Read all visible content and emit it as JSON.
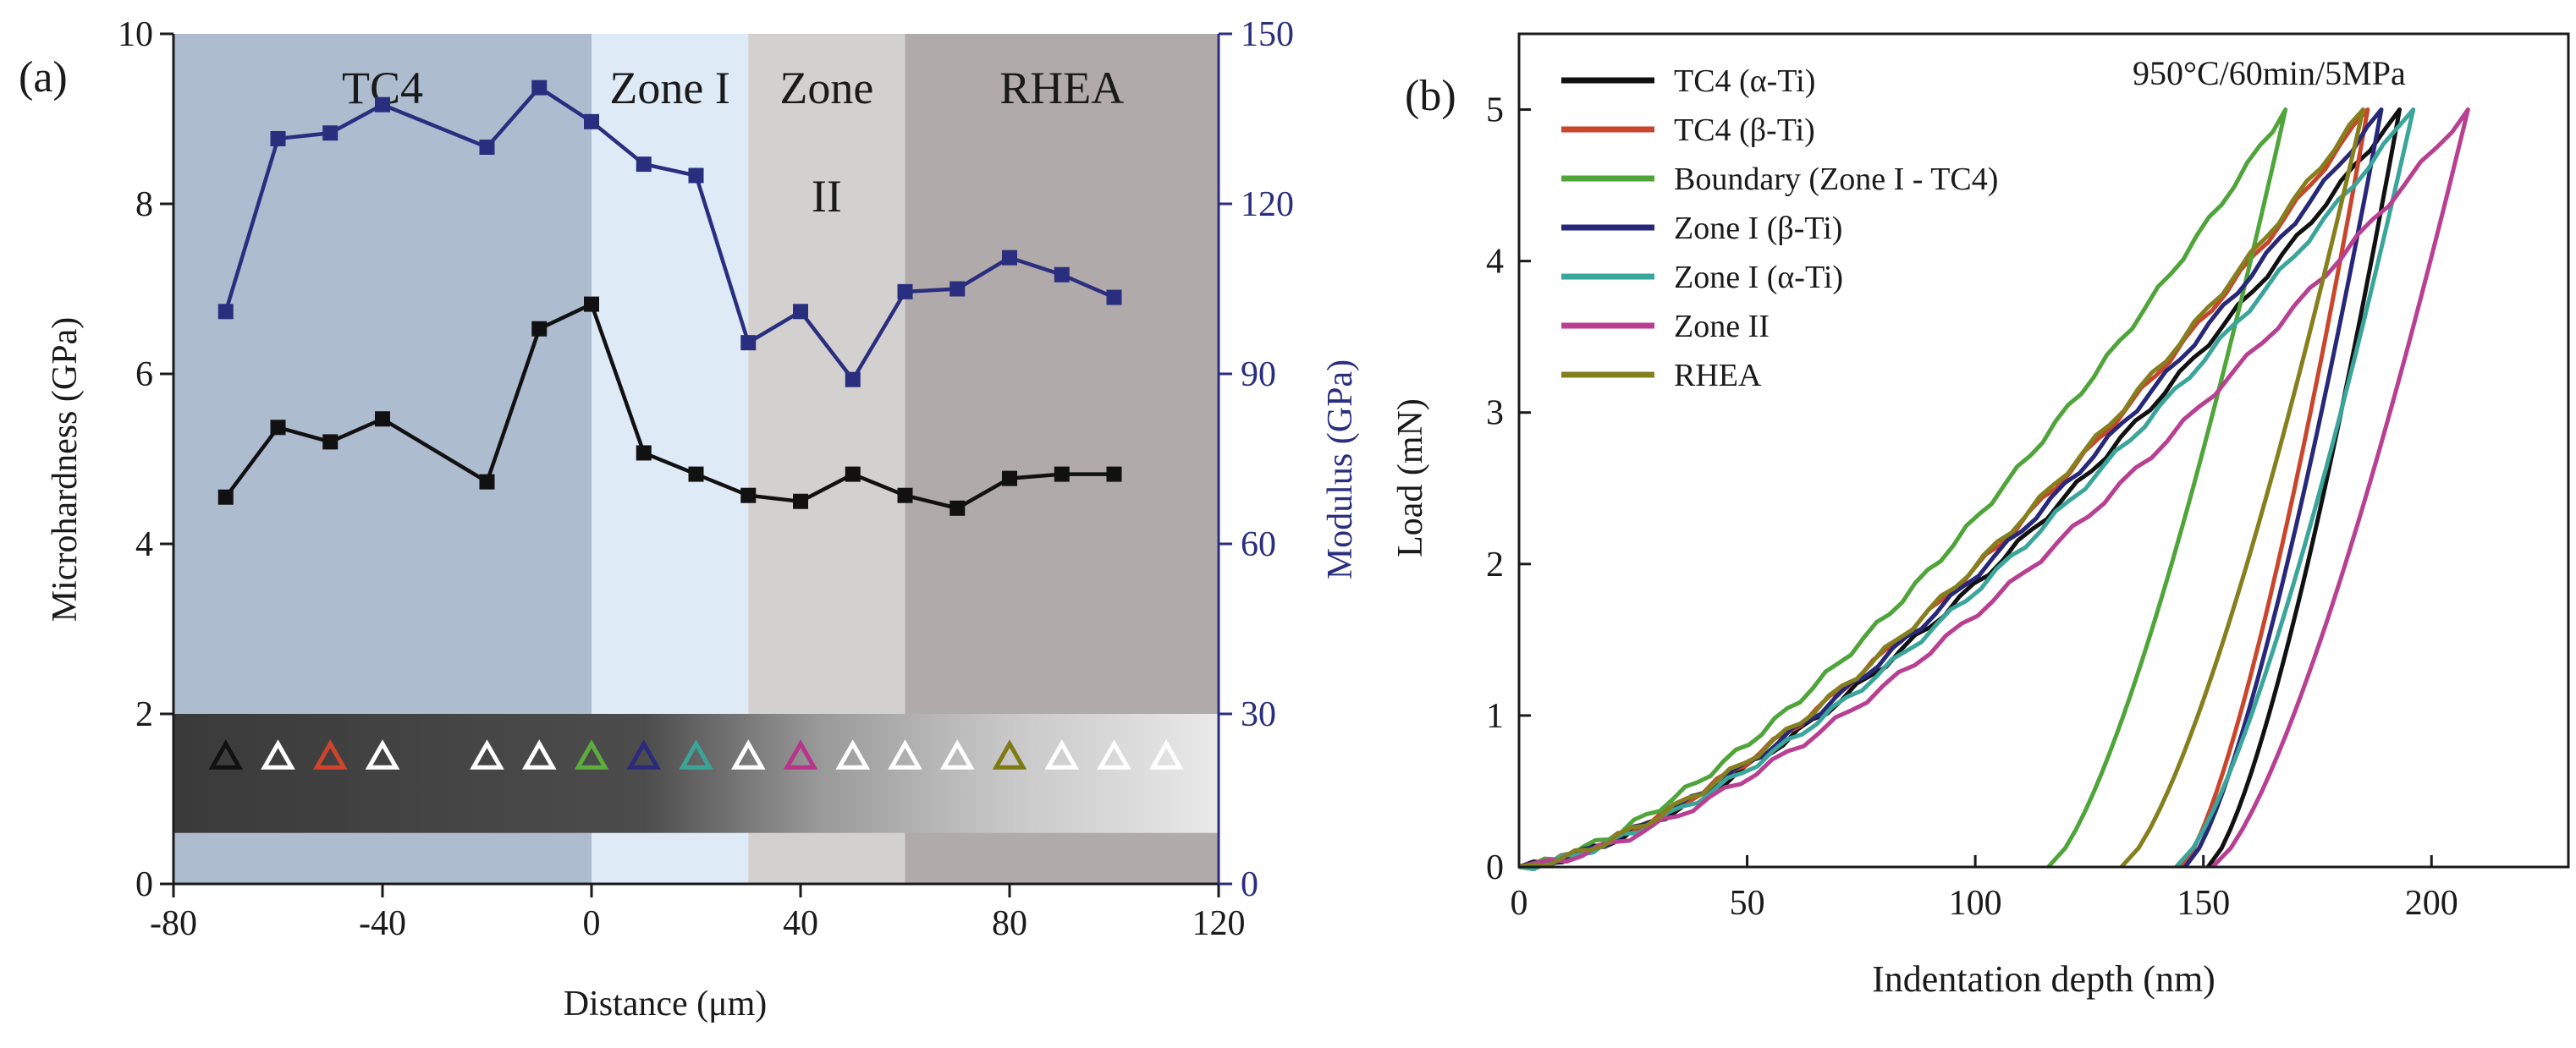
{
  "panel_labels": {
    "a": "(a)",
    "b": "(b)"
  },
  "chart_data": [
    {
      "type": "line",
      "panel": "(a)",
      "xlabel": "Distance (μm)",
      "ylabel": "Microhardness (GPa)",
      "y2label": "Modulus (GPa)",
      "xlim": [
        -80,
        120
      ],
      "xticks": [
        -80,
        -40,
        0,
        40,
        80,
        120
      ],
      "xtick_labels": [
        "-80",
        "-40",
        "0",
        "40",
        "80",
        "120"
      ],
      "ylim": [
        0,
        10
      ],
      "yticks": [
        0,
        2,
        4,
        6,
        8,
        10
      ],
      "ytick_labels": [
        "0",
        "2",
        "4",
        "6",
        "8",
        "10"
      ],
      "y2lim": [
        0,
        150
      ],
      "y2ticks": [
        0,
        30,
        60,
        90,
        120,
        150
      ],
      "y2tick_labels": [
        "0",
        "30",
        "60",
        "90",
        "120",
        "150"
      ],
      "zones": [
        {
          "name": "TC4",
          "label": "TC4",
          "from": -80,
          "to": 0,
          "color": "#aebcd0"
        },
        {
          "name": "Zone I",
          "label": "Zone I",
          "from": 0,
          "to": 30,
          "color": "#deeaf6"
        },
        {
          "name": "Zone II",
          "label": "Zone",
          "label2": "II",
          "from": 30,
          "to": 60,
          "color": "#d3d1cf"
        },
        {
          "name": "RHEA",
          "label": "RHEA",
          "from": 60,
          "to": 120,
          "color": "#b1aaaa"
        }
      ],
      "micrograph_strip": {
        "y_from": 0.6,
        "y_to": 2.0
      },
      "indent_markers": [
        {
          "x": -70,
          "color": "#111111"
        },
        {
          "x": -60,
          "color": "#ffffff"
        },
        {
          "x": -50,
          "color": "#d0442a"
        },
        {
          "x": -40,
          "color": "#ffffff"
        },
        {
          "x": -20,
          "color": "#ffffff"
        },
        {
          "x": -10,
          "color": "#ffffff"
        },
        {
          "x": 0,
          "color": "#5cad3c"
        },
        {
          "x": 10,
          "color": "#2b2a7c"
        },
        {
          "x": 20,
          "color": "#3aa597"
        },
        {
          "x": 30,
          "color": "#ffffff"
        },
        {
          "x": 40,
          "color": "#b8338a"
        },
        {
          "x": 50,
          "color": "#ffffff"
        },
        {
          "x": 60,
          "color": "#ffffff"
        },
        {
          "x": 70,
          "color": "#ffffff"
        },
        {
          "x": 80,
          "color": "#807a14"
        },
        {
          "x": 90,
          "color": "#ffffff"
        },
        {
          "x": 100,
          "color": "#ffffff"
        },
        {
          "x": 110,
          "color": "#ffffff"
        }
      ],
      "series": [
        {
          "name": "Microhardness",
          "axis": "left",
          "color": "#111111",
          "x": [
            -70,
            -60,
            -50,
            -40,
            -20,
            -10,
            0,
            10,
            20,
            30,
            40,
            50,
            60,
            70,
            80,
            90,
            100
          ],
          "y": [
            4.55,
            5.37,
            5.2,
            5.47,
            4.73,
            6.53,
            6.82,
            5.07,
            4.82,
            4.57,
            4.5,
            4.82,
            4.57,
            4.42,
            4.77,
            4.82,
            4.82
          ]
        },
        {
          "name": "Modulus",
          "axis": "right",
          "color": "#2a2e7e",
          "x": [
            -70,
            -60,
            -50,
            -40,
            -20,
            -10,
            0,
            10,
            20,
            30,
            40,
            50,
            60,
            70,
            80,
            90,
            100
          ],
          "y": [
            101,
            131.5,
            132.5,
            137.5,
            130,
            140.5,
            134.5,
            127,
            125,
            95.5,
            101,
            89,
            104.5,
            105,
            110.5,
            107.5,
            103.5
          ]
        }
      ]
    },
    {
      "type": "line",
      "panel": "(b)",
      "annotation": "950°C/60min/5MPa",
      "xlabel": "Indentation depth (nm)",
      "ylabel": "Load (mN)",
      "xlim": [
        0,
        230
      ],
      "xticks": [
        0,
        50,
        100,
        150,
        200
      ],
      "xtick_labels": [
        "0",
        "50",
        "100",
        "150",
        "200"
      ],
      "ylim": [
        0,
        5.5
      ],
      "yticks": [
        0,
        1,
        2,
        3,
        4,
        5
      ],
      "ytick_labels": [
        "0",
        "1",
        "2",
        "3",
        "4",
        "5"
      ],
      "legend_position": "top-left",
      "series": [
        {
          "name": "TC4 (α-Ti)",
          "color": "#111111",
          "max_depth": 193,
          "max_load": 5.0,
          "final_depth": 151
        },
        {
          "name": "TC4 (β-Ti)",
          "color": "#c9452b",
          "max_depth": 186,
          "max_load": 5.0,
          "final_depth": 145
        },
        {
          "name": "Boundary (Zone I - TC4)",
          "color": "#4fa43a",
          "max_depth": 168,
          "max_load": 5.0,
          "final_depth": 116
        },
        {
          "name": "Zone I (β-Ti)",
          "color": "#27287a",
          "max_depth": 189,
          "max_load": 5.0,
          "final_depth": 146
        },
        {
          "name": "Zone I (α-Ti)",
          "color": "#3aa59a",
          "max_depth": 196,
          "max_load": 5.0,
          "final_depth": 144
        },
        {
          "name": "Zone II",
          "color": "#b83f92",
          "max_depth": 208,
          "max_load": 5.0,
          "final_depth": 152
        },
        {
          "name": "RHEA",
          "color": "#857f1e",
          "max_depth": 185,
          "max_load": 5.0,
          "final_depth": 132
        }
      ]
    }
  ]
}
